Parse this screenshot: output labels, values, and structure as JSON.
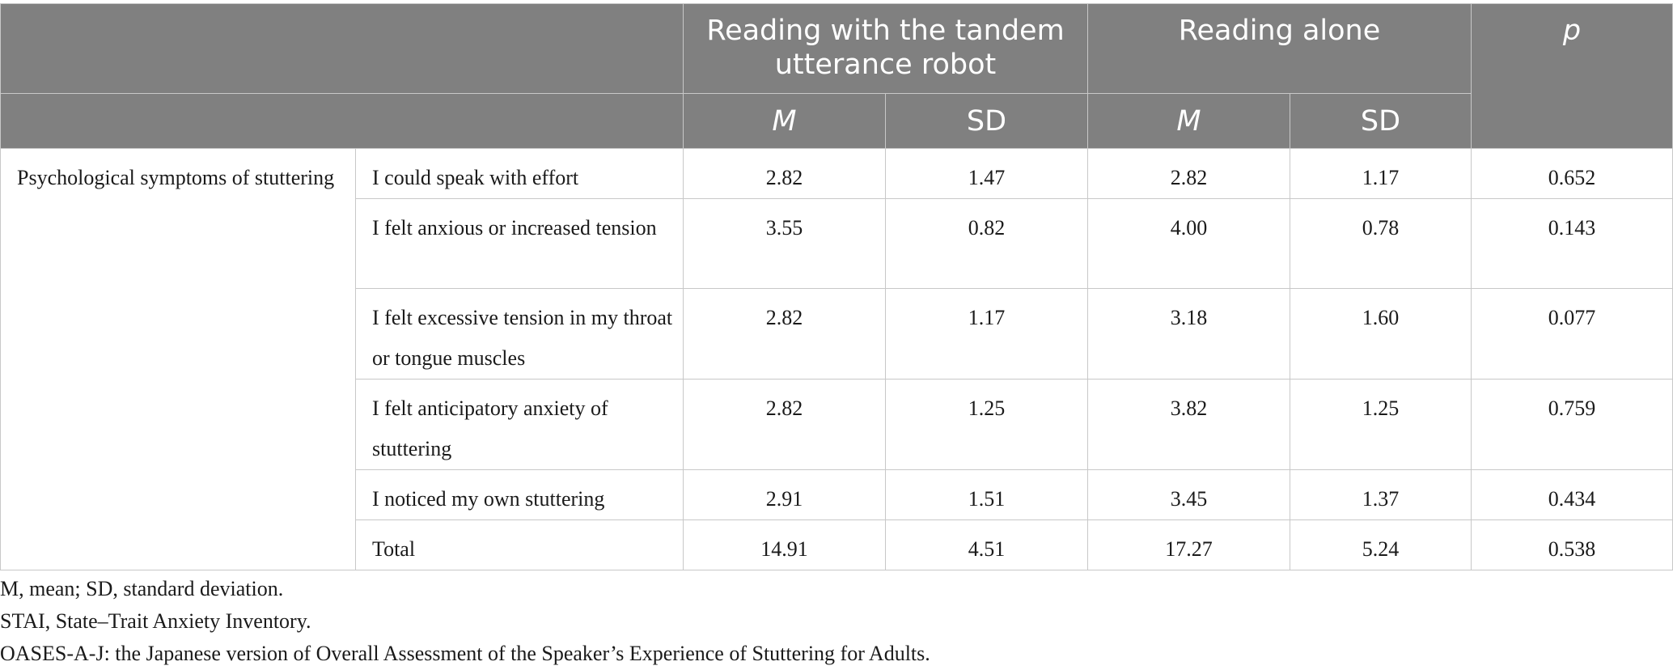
{
  "header": {
    "group_robot": "Reading with the tandem utterance robot",
    "group_alone": "Reading alone",
    "p": "p",
    "sub": [
      "M",
      "SD",
      "M",
      "SD"
    ]
  },
  "category": "Psychological symptoms of stuttering",
  "rows": [
    {
      "item": "I could speak with effort",
      "robot_m": "2.82",
      "robot_sd": "1.47",
      "alone_m": "2.82",
      "alone_sd": "1.17",
      "p": "0.652"
    },
    {
      "item": "I felt anxious or increased tension",
      "robot_m": "3.55",
      "robot_sd": "0.82",
      "alone_m": "4.00",
      "alone_sd": "0.78",
      "p": "0.143"
    },
    {
      "item": "I felt excessive tension in my throat or tongue muscles",
      "robot_m": "2.82",
      "robot_sd": "1.17",
      "alone_m": "3.18",
      "alone_sd": "1.60",
      "p": "0.077"
    },
    {
      "item": "I felt anticipatory anxiety of stuttering",
      "robot_m": "2.82",
      "robot_sd": "1.25",
      "alone_m": "3.82",
      "alone_sd": "1.25",
      "p": "0.759"
    },
    {
      "item": "I noticed my own stuttering",
      "robot_m": "2.91",
      "robot_sd": "1.51",
      "alone_m": "3.45",
      "alone_sd": "1.37",
      "p": "0.434"
    },
    {
      "item": "Total",
      "robot_m": "14.91",
      "robot_sd": "4.51",
      "alone_m": "17.27",
      "alone_sd": "5.24",
      "p": "0.538"
    }
  ],
  "notes": [
    "M, mean; SD, standard deviation.",
    "STAI, State–Trait Anxiety Inventory.",
    "OASES-A-J: the Japanese version of Overall Assessment of the Speaker’s Experience of Stuttering for Adults."
  ]
}
